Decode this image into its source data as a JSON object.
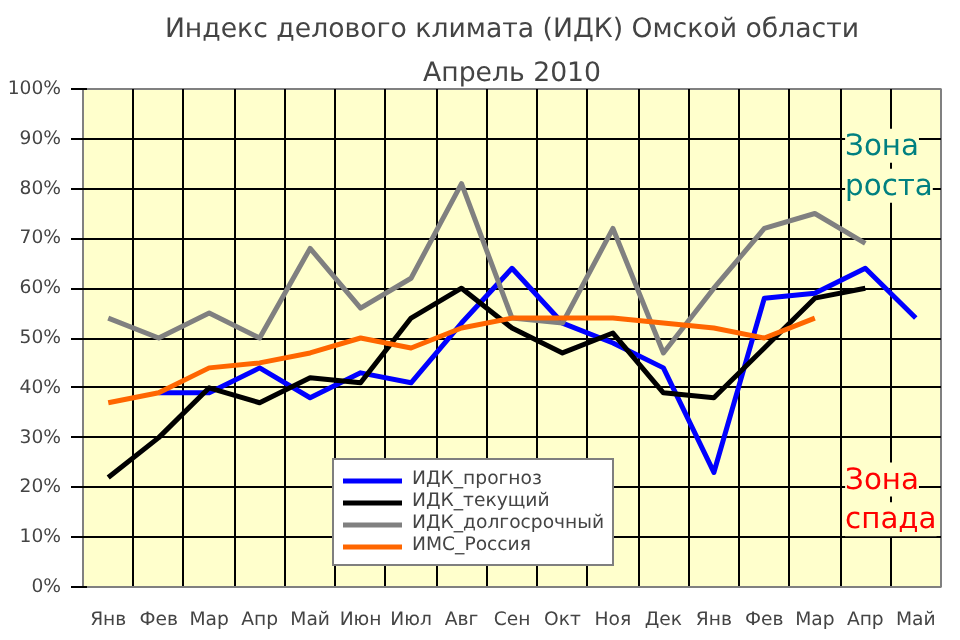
{
  "chart_data": {
    "type": "line",
    "title": "Индекс делового климата (ИДК) Омской области",
    "subtitle": "Апрель 2010",
    "categories": [
      "Янв",
      "Фев",
      "Мар",
      "Апр",
      "Май",
      "Июн",
      "Июл",
      "Авг",
      "Сен",
      "Окт",
      "Ноя",
      "Дек",
      "Янв",
      "Фев",
      "Мар",
      "Апр",
      "Май"
    ],
    "series": [
      {
        "name": "ИДК_прогноз",
        "color": "#0000ff",
        "values": [
          null,
          39,
          39,
          44,
          38,
          43,
          41,
          53,
          64,
          53,
          49,
          44,
          23,
          58,
          59,
          64,
          54
        ]
      },
      {
        "name": "ИДК_текущий",
        "color": "#000000",
        "values": [
          22,
          30,
          40,
          37,
          42,
          41,
          54,
          60,
          52,
          47,
          51,
          39,
          38,
          48,
          58,
          60,
          null
        ]
      },
      {
        "name": "ИДК_долгосрочный",
        "color": "#808080",
        "values": [
          54,
          50,
          55,
          50,
          68,
          56,
          62,
          81,
          54,
          53,
          72,
          47,
          60,
          72,
          75,
          69,
          null
        ]
      },
      {
        "name": "ИМС_Россия",
        "color": "#ff6600",
        "values": [
          37,
          39,
          44,
          45,
          47,
          50,
          48,
          52,
          54,
          54,
          54,
          53,
          52,
          50,
          54,
          null,
          null
        ]
      }
    ],
    "ylim": [
      0,
      100
    ],
    "yticks": [
      {
        "value": 0,
        "label": "0%"
      },
      {
        "value": 10,
        "label": "10%"
      },
      {
        "value": 20,
        "label": "20%"
      },
      {
        "value": 30,
        "label": "30%"
      },
      {
        "value": 40,
        "label": "40%"
      },
      {
        "value": 50,
        "label": "50%"
      },
      {
        "value": 60,
        "label": "60%"
      },
      {
        "value": 70,
        "label": "70%"
      },
      {
        "value": 80,
        "label": "80%"
      },
      {
        "value": 90,
        "label": "90%"
      },
      {
        "value": 100,
        "label": "100%"
      }
    ],
    "grid": true,
    "legend": "bottom",
    "marker": "none",
    "line_style": "solid",
    "annotations": [
      "Зона роста",
      "Зона спада"
    ]
  }
}
